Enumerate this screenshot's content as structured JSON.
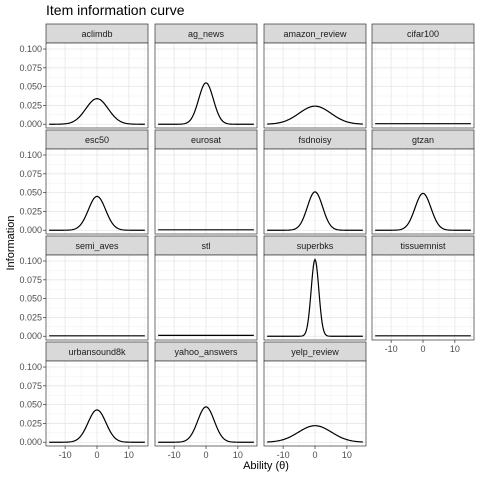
{
  "chart_data": {
    "type": "line",
    "title": "Item information curve",
    "xlabel": "Ability (θ)",
    "ylabel": "Information",
    "xlim": [
      -16,
      16
    ],
    "ylim": [
      -0.005,
      0.108
    ],
    "x_ticks": [
      -10,
      0,
      10
    ],
    "x_tick_labels": [
      "-10",
      "0",
      "10"
    ],
    "y_ticks": [
      0,
      0.025,
      0.05,
      0.075,
      0.1
    ],
    "y_tick_labels": [
      "0.000",
      "0.025",
      "0.050",
      "0.075",
      "0.100"
    ],
    "grid": true,
    "layout": "facet-wrap-4-columns",
    "curve_color": "#000000",
    "strip_color": "#d9d9d9",
    "facets": [
      {
        "name": "aclimdb",
        "peak": 0.034,
        "spread": 3.5
      },
      {
        "name": "ag_news",
        "peak": 0.055,
        "spread": 2.3
      },
      {
        "name": "amazon_review",
        "peak": 0.024,
        "spread": 5.0
      },
      {
        "name": "cifar100",
        "peak": 0.0007,
        "spread": 300
      },
      {
        "name": "esc50",
        "peak": 0.045,
        "spread": 2.7
      },
      {
        "name": "eurosat",
        "peak": 0.0006,
        "spread": 300
      },
      {
        "name": "fsdnoisy",
        "peak": 0.051,
        "spread": 2.4
      },
      {
        "name": "gtzan",
        "peak": 0.049,
        "spread": 2.5
      },
      {
        "name": "semi_aves",
        "peak": 0.0006,
        "spread": 300
      },
      {
        "name": "stl",
        "peak": 0.0012,
        "spread": 60
      },
      {
        "name": "superbks",
        "peak": 0.102,
        "spread": 1.2
      },
      {
        "name": "tissuemnist",
        "peak": 0.0006,
        "spread": 300
      },
      {
        "name": "urbansound8k",
        "peak": 0.043,
        "spread": 2.8
      },
      {
        "name": "yahoo_answers",
        "peak": 0.047,
        "spread": 2.6
      },
      {
        "name": "yelp_review",
        "peak": 0.022,
        "spread": 5.2
      }
    ]
  }
}
